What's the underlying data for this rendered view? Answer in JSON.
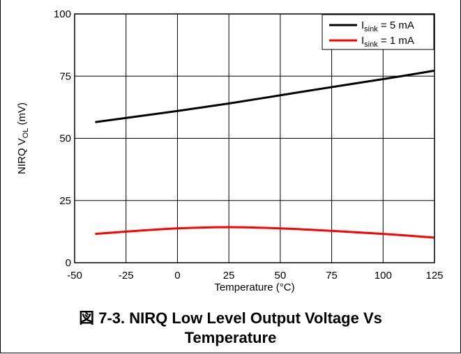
{
  "caption": {
    "line1": "図 7-3. NIRQ Low Level Output Voltage Vs",
    "line2": "Temperature"
  },
  "chart_data": {
    "type": "line",
    "title": "図 7-3. NIRQ Low Level Output Voltage Vs Temperature",
    "xlabel": "Temperature (°C)",
    "ylabel": {
      "prefix": "NIRQ V",
      "sub": "OL",
      "suffix": " (mV)"
    },
    "xlim": [
      -50,
      125
    ],
    "ylim": [
      0,
      100
    ],
    "xticks": [
      -50,
      -25,
      0,
      25,
      50,
      75,
      100,
      125
    ],
    "yticks": [
      0,
      25,
      50,
      75,
      100
    ],
    "grid": true,
    "legend_position": "top-right",
    "series": [
      {
        "name": "Isink = 5 mA",
        "legend": {
          "main": "I",
          "sub": "sink",
          "rest": " = 5 mA"
        },
        "color": "#000000",
        "x": [
          -40,
          -25,
          0,
          25,
          50,
          75,
          100,
          125
        ],
        "y": [
          56.5,
          58.2,
          61.0,
          64.0,
          67.3,
          70.6,
          73.8,
          77.2
        ]
      },
      {
        "name": "Isink = 1 mA",
        "legend": {
          "main": "I",
          "sub": "sink",
          "rest": " = 1 mA"
        },
        "color": "#ff0000",
        "x": [
          -40,
          -25,
          0,
          25,
          50,
          75,
          100,
          125
        ],
        "y": [
          11.6,
          12.5,
          13.8,
          14.3,
          13.8,
          12.8,
          11.6,
          10.1
        ]
      }
    ]
  }
}
